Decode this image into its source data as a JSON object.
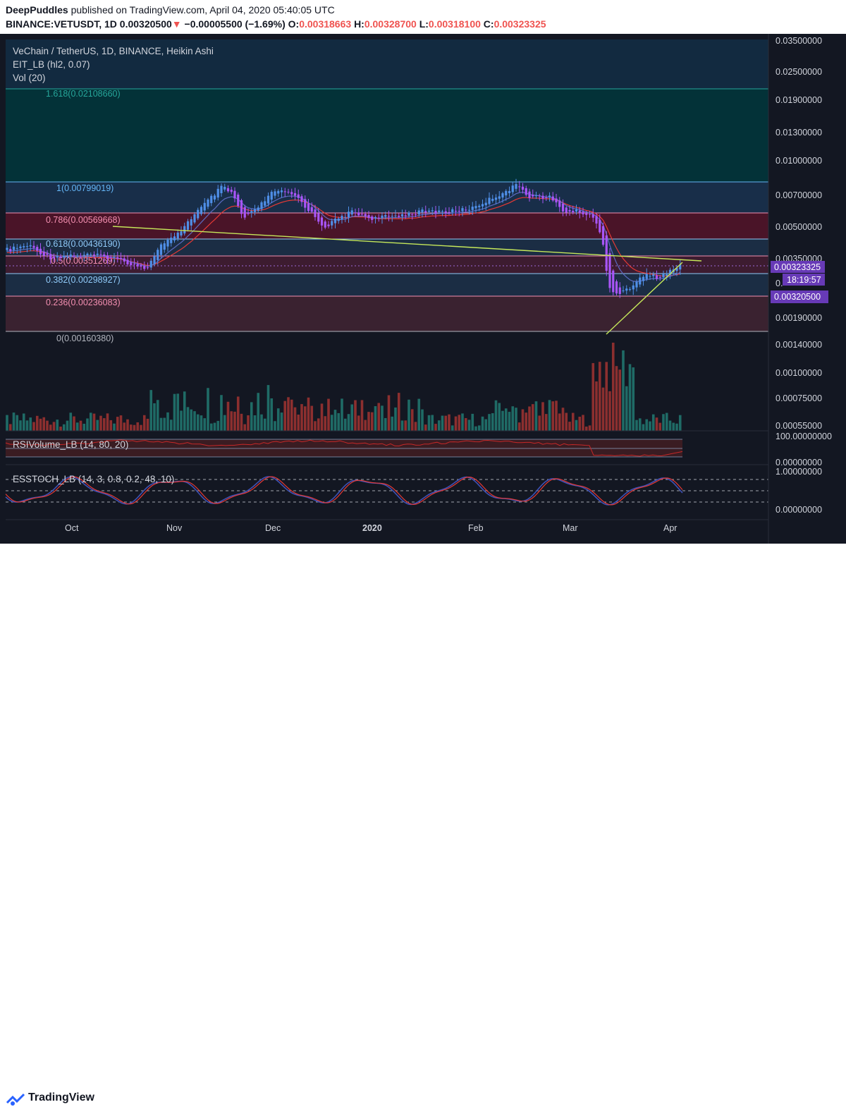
{
  "header": {
    "author": "DeepPuddles",
    "published_text": "published on TradingView.com, April 04, 2020 05:40:05 UTC",
    "symbol": "BINANCE:VETUSDT, 1D",
    "price": "0.00320500",
    "change_arrow": "▼",
    "change": "−0.00005500 (−1.69%)",
    "o_label": "O:",
    "o_value": "0.00318663",
    "h_label": "H:",
    "h_value": "0.00328700",
    "l_label": "L:",
    "l_value": "0.00318100",
    "c_label": "C:",
    "c_value": "0.00323325"
  },
  "legend": {
    "title": "VeChain / TetherUS, 1D, BINANCE, Heikin Ashi",
    "indicator1": "EIT_LB (hl2, 0.07)",
    "indicator2": "Vol (20)",
    "rsi": "RSIVolume_LB (14, 80, 20)",
    "stoch": "ESSTOCH_LB (14, 3, 0.8, 0.2, 48, 10)"
  },
  "footer": {
    "brand": "TradingView"
  },
  "chart_data": {
    "type": "candlestick",
    "symbol": "VETUSDT",
    "timeframe": "1D",
    "price_axis_labels": [
      "0.03500000",
      "0.02500000",
      "0.01900000",
      "0.01300000",
      "0.01000000",
      "0.00700000",
      "0.00500000",
      "0.00350000",
      "0.00190000",
      "0.00140000",
      "0.00100000",
      "0.00075000",
      "0.00055000"
    ],
    "price_markers": [
      {
        "label": "0.00323325",
        "color": "#673ab7"
      },
      {
        "label": "18:19:57",
        "color": "#673ab7"
      },
      {
        "label": "0.00320500",
        "color": "#673ab7"
      }
    ],
    "partial_axis_label": "0.",
    "x_axis_labels": [
      "Oct",
      "Nov",
      "Dec",
      "2020",
      "Feb",
      "Mar",
      "Apr"
    ],
    "fib_levels": [
      {
        "label": "1.618(0.02108660)",
        "value": 0.0210866,
        "color": "#26a69a"
      },
      {
        "label": "1(0.00799019)",
        "value": 0.00799019,
        "color": "#64b5f6"
      },
      {
        "label": "0.786(0.00569668)",
        "value": 0.00569668,
        "color": "#f48fb1"
      },
      {
        "label": "0.618(0.00436190)",
        "value": 0.0043619,
        "color": "#90caf9"
      },
      {
        "label": "0.5(0.00351269)",
        "value": 0.00351269,
        "color": "#f48fb1"
      },
      {
        "label": "0.382(0.00298927)",
        "value": 0.00298927,
        "color": "#90caf9"
      },
      {
        "label": "0.236(0.00236083)",
        "value": 0.00236083,
        "color": "#f48fb1"
      },
      {
        "label": "0(0.00160380)",
        "value": 0.0016038,
        "color": "#b2b5be"
      }
    ],
    "rsi_axis_labels": [
      "100.00000000",
      "0.00000000"
    ],
    "stoch_axis_labels": [
      "1.00000000",
      "0.00000000"
    ],
    "candles": [
      {
        "t": "2019-09",
        "c": 0.0037
      },
      {
        "t": "2019-10",
        "c": 0.0031
      },
      {
        "t": "2019-11",
        "c": 0.0075
      },
      {
        "t": "2019-12",
        "c": 0.0055
      },
      {
        "t": "2020-01",
        "c": 0.0053
      },
      {
        "t": "2020-02",
        "c": 0.008
      },
      {
        "t": "2020-03",
        "c": 0.0022
      },
      {
        "t": "2020-04",
        "c": 0.0032
      }
    ],
    "colors": {
      "bull": "#4f8fe8",
      "bear": "#a855f7",
      "ema_red": "#e53935",
      "ema_blue": "#5c6bc0",
      "trend": "#c6e85a"
    }
  }
}
